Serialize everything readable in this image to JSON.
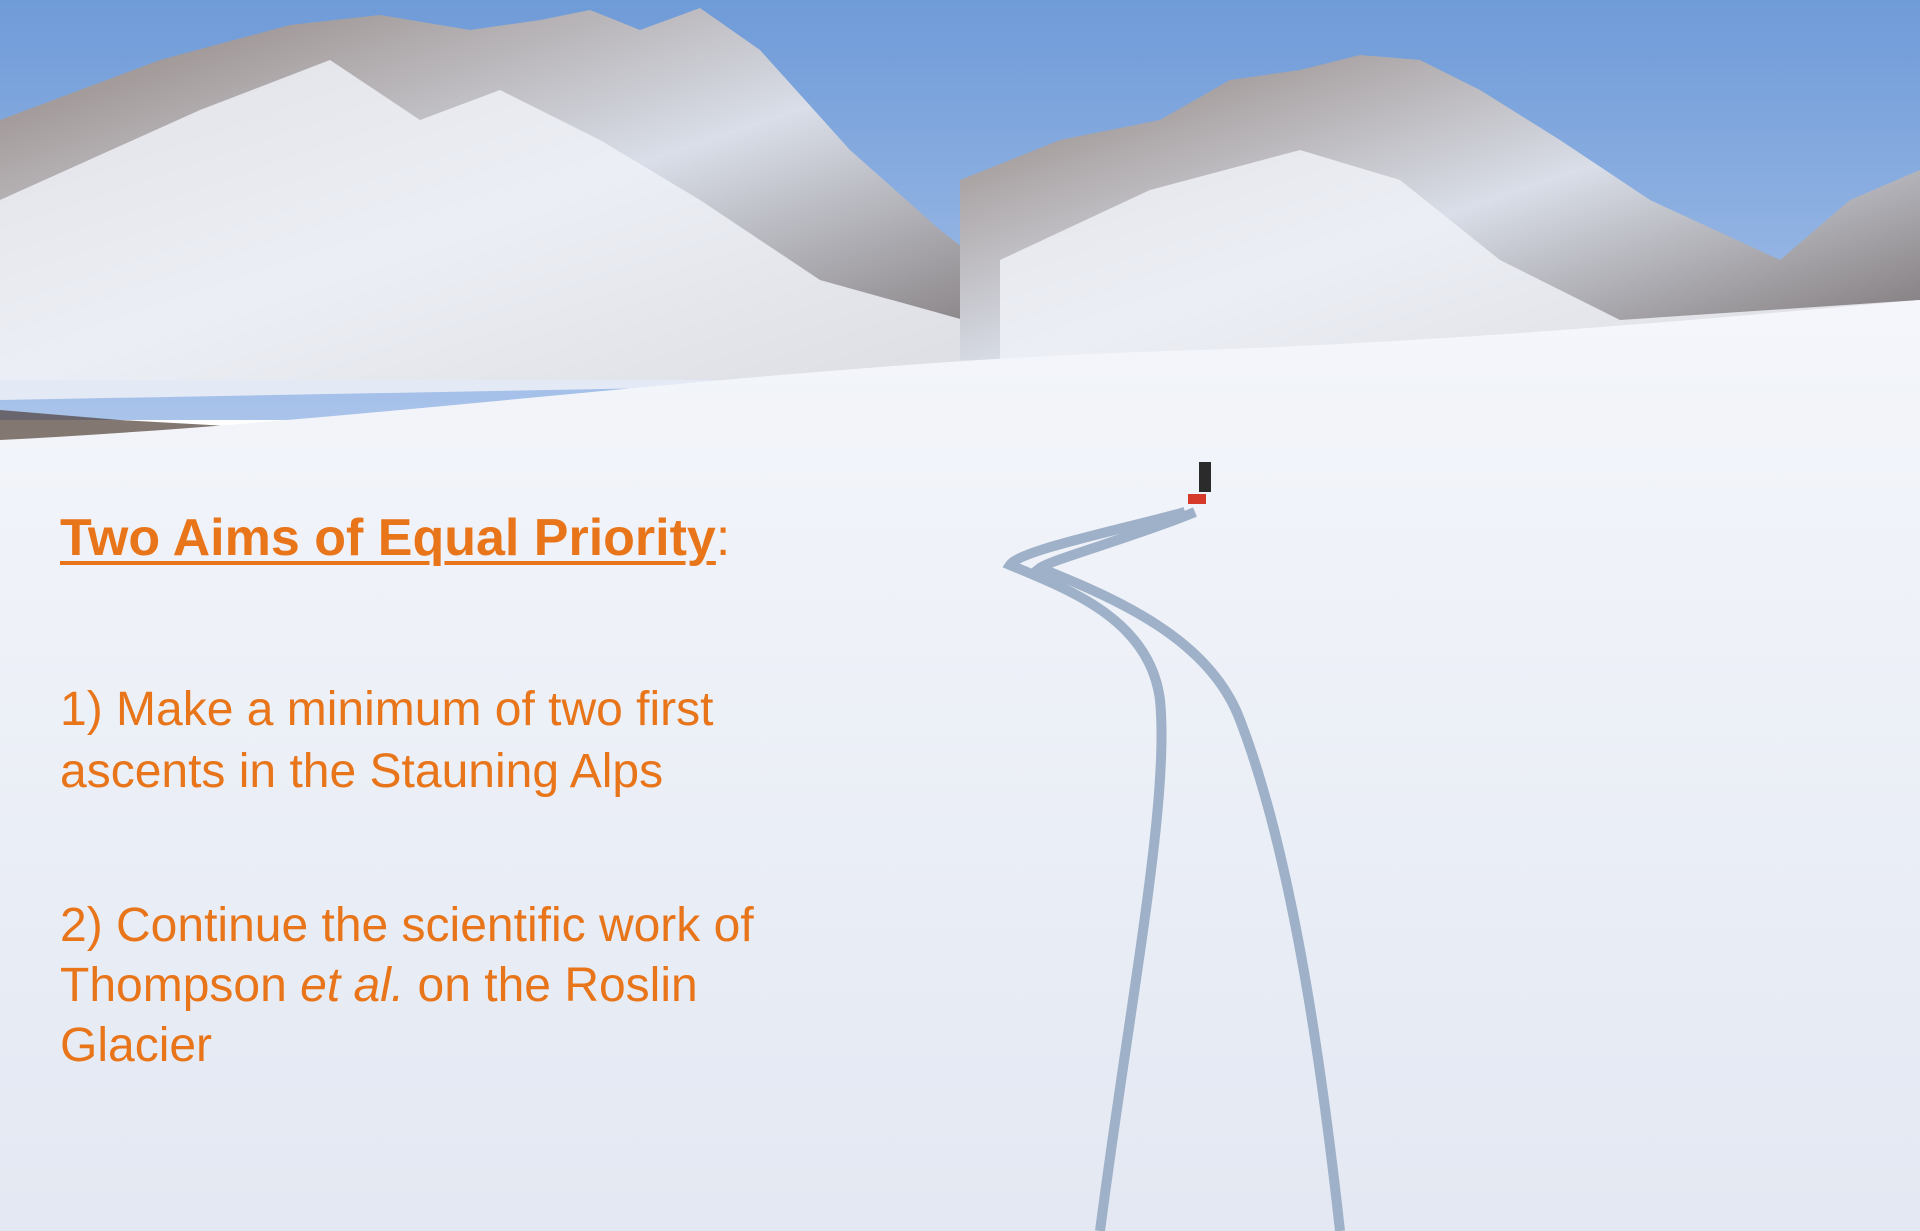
{
  "title": "Two Aims of Equal Priority",
  "title_suffix": ":",
  "aims": [
    {
      "lines": [
        "1) Make a minimum of two first",
        "ascents in the Stauning Alps"
      ]
    },
    {
      "lines": [
        "2) Continue the scientific work of",
        [
          "Thompson ",
          "et al.",
          " on the Roslin"
        ],
        "Glacier"
      ]
    }
  ]
}
